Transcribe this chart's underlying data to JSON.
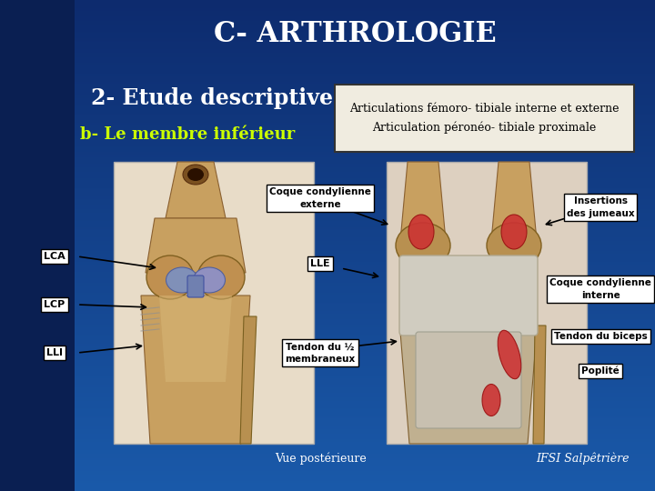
{
  "title": "C- ARTHROLOGIE",
  "subtitle1": "2- Etude descriptive",
  "subtitle2": "b- Le membre inférieur",
  "box_text": "Articulations fémoro- tibiale interne et externe\nArticulation péronéo- tibiale proximale",
  "bg_dark": "#0d2b6e",
  "bg_mid": "#1a4a9a",
  "bg_light": "#2060b8",
  "bg_left_strip": "#0a1f52",
  "title_color": "#ffffff",
  "subtitle1_color": "#ffffff",
  "subtitle2_color": "#ccff00",
  "box_bg": "#f0ece0",
  "box_text_color": "#000000",
  "box_border": "#333333",
  "label_bg": "#f0ece0",
  "label_text": "#000000",
  "arrow_color": "#000000",
  "bottom_left_text": "Vue postérieure",
  "bottom_right_text": "IFSI Salpêtrière"
}
